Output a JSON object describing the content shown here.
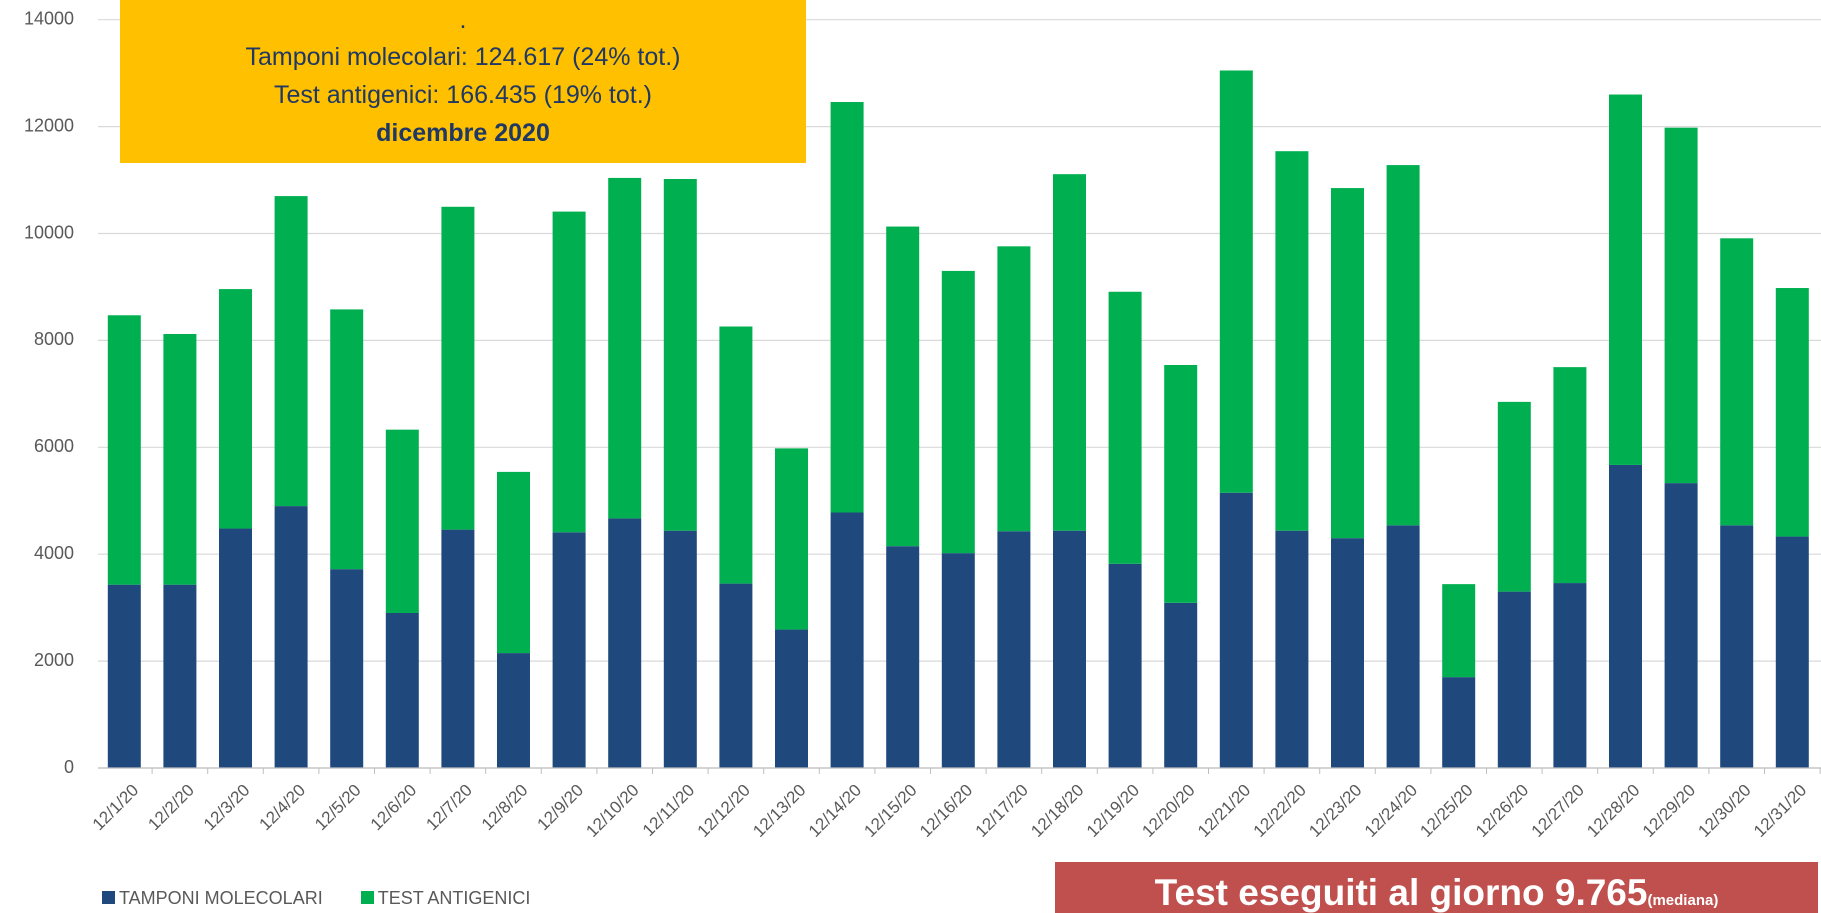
{
  "chart_data": {
    "type": "stacked_bar",
    "categories": [
      "12/1/20",
      "12/2/20",
      "12/3/20",
      "12/4/20",
      "12/5/20",
      "12/6/20",
      "12/7/20",
      "12/8/20",
      "12/9/20",
      "12/10/20",
      "12/11/20",
      "12/12/20",
      "12/13/20",
      "12/14/20",
      "12/15/20",
      "12/16/20",
      "12/17/20",
      "12/18/20",
      "12/19/20",
      "12/20/20",
      "12/21/20",
      "12/22/20",
      "12/23/20",
      "12/24/20",
      "12/25/20",
      "12/26/20",
      "12/27/20",
      "12/28/20",
      "12/29/20",
      "12/30/20",
      "12/31/20"
    ],
    "series": [
      {
        "name": "TAMPONI MOLECOLARI",
        "color": "#1f497d",
        "values": [
          3430,
          3430,
          4480,
          4900,
          3720,
          2900,
          4460,
          2150,
          4410,
          4670,
          4440,
          3450,
          2590,
          4780,
          4150,
          4020,
          4430,
          4440,
          3820,
          3090,
          5150,
          4440,
          4300,
          4540,
          1700,
          3300,
          3460,
          5670,
          5330,
          4540,
          4330
        ]
      },
      {
        "name": "TEST ANTIGENICI",
        "color": "#00b050",
        "values": [
          5040,
          4690,
          4480,
          5800,
          4860,
          3430,
          6040,
          3390,
          6000,
          6370,
          6580,
          4810,
          3390,
          7680,
          5980,
          5280,
          5330,
          6670,
          5090,
          4450,
          7900,
          7100,
          6550,
          6740,
          1740,
          3550,
          4040,
          6930,
          6650,
          5370,
          4650
        ]
      }
    ],
    "ylim": [
      0,
      14000
    ],
    "yticks": [
      0,
      2000,
      4000,
      6000,
      8000,
      10000,
      12000,
      14000
    ],
    "grid": true,
    "annotation": {
      "dot": ".",
      "lines": [
        "Tamponi molecolari: 124.617 (24% tot.)",
        "Test antigenici: 166.435 (19% tot.)"
      ],
      "period": "dicembre 2020"
    },
    "summary": {
      "text": "Test eseguiti al giorno 9.765",
      "note": "(mediana)"
    }
  }
}
